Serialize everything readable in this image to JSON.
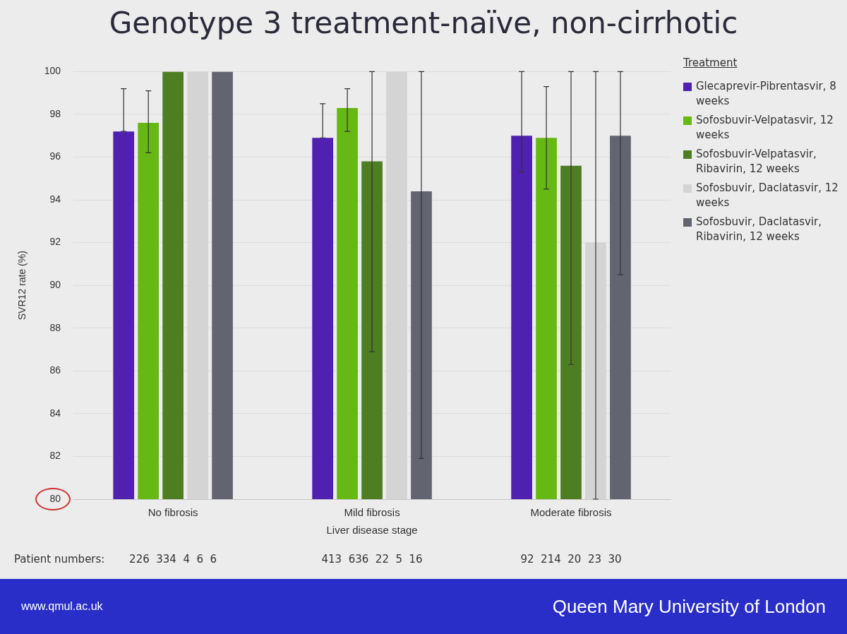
{
  "chart_data": {
    "type": "bar",
    "title": "Genotype 3 treatment-naïve, non-cirrhotic",
    "xlabel": "Liver disease stage",
    "ylabel": "SVR12 rate (%)",
    "legend_title": "Treatment",
    "legend": "right",
    "grid": "y",
    "categories": [
      "No fibrosis",
      "Mild fibrosis",
      "Moderate fibrosis"
    ],
    "ylim": [
      80,
      100
    ],
    "yticks": [
      80,
      82,
      84,
      86,
      88,
      90,
      92,
      94,
      96,
      98,
      100
    ],
    "series": [
      {
        "name": "Glecaprevir-Pibrentasvir, 8 weeks",
        "color": "#5020b0",
        "values": [
          97.2,
          96.9,
          97.0
        ],
        "errors": [
          [
            97.2,
            99.2
          ],
          [
            96.9,
            98.5
          ],
          [
            95.3,
            100
          ]
        ]
      },
      {
        "name": "Sofosbuvir-Velpatasvir, 12 weeks",
        "color": "#66b814",
        "values": [
          97.6,
          98.3,
          96.9
        ],
        "errors": [
          [
            96.2,
            99.1
          ],
          [
            97.2,
            99.2
          ],
          [
            94.5,
            99.3
          ]
        ]
      },
      {
        "name": "Sofosbuvir-Velpatasvir, Ribavirin, 12 weeks",
        "color": "#4e7e22",
        "values": [
          100,
          95.8,
          95.6
        ],
        "errors": [
          null,
          [
            86.9,
            100
          ],
          [
            86.3,
            100
          ]
        ]
      },
      {
        "name": "Sofosbuvir, Daclatasvir, 12 weeks",
        "color": "#d4d4d4",
        "values": [
          100,
          100,
          92.0
        ],
        "errors": [
          null,
          null,
          [
            80,
            100
          ]
        ]
      },
      {
        "name": "Sofosbuvir, Daclatasvir, Ribavirin, 12 weeks",
        "color": "#626470",
        "values": [
          100,
          94.4,
          97.0
        ],
        "errors": [
          null,
          [
            81.9,
            100
          ],
          [
            90.5,
            100
          ]
        ]
      }
    ],
    "annotations": [
      "Patient numbers:",
      "226  334  4  6  6",
      "413  636  22  5  16",
      "92  214  20  23  30",
      "www.qmul.ac.uk",
      "Queen Mary University of London"
    ]
  }
}
